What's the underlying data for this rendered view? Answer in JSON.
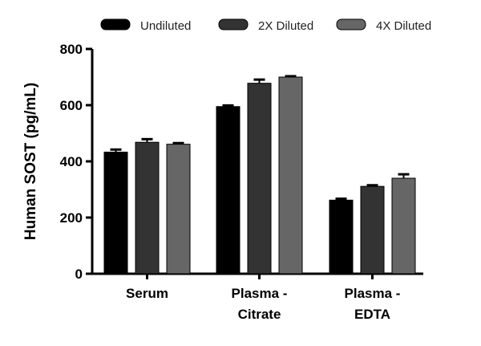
{
  "chart_data": {
    "type": "bar",
    "title": "",
    "xlabel": "",
    "ylabel": "Human SOST (pg/mL)",
    "ylim": [
      0,
      800
    ],
    "yticks": [
      0,
      200,
      400,
      600,
      800
    ],
    "grid": false,
    "legend": "top",
    "categories": [
      [
        "Serum"
      ],
      [
        "Plasma -",
        "Citrate"
      ],
      [
        "Plasma -",
        "EDTA"
      ]
    ],
    "series": [
      {
        "name": "Undiluted",
        "color": "#000000",
        "values": [
          433,
          595,
          262
        ],
        "errors": [
          9,
          4,
          5
        ]
      },
      {
        "name": "2X Diluted",
        "color": "#333333",
        "values": [
          468,
          678,
          311
        ],
        "errors": [
          11,
          13,
          4
        ]
      },
      {
        "name": "4X Diluted",
        "color": "#666666",
        "values": [
          461,
          700,
          340
        ],
        "errors": [
          4,
          3,
          14
        ]
      }
    ]
  }
}
